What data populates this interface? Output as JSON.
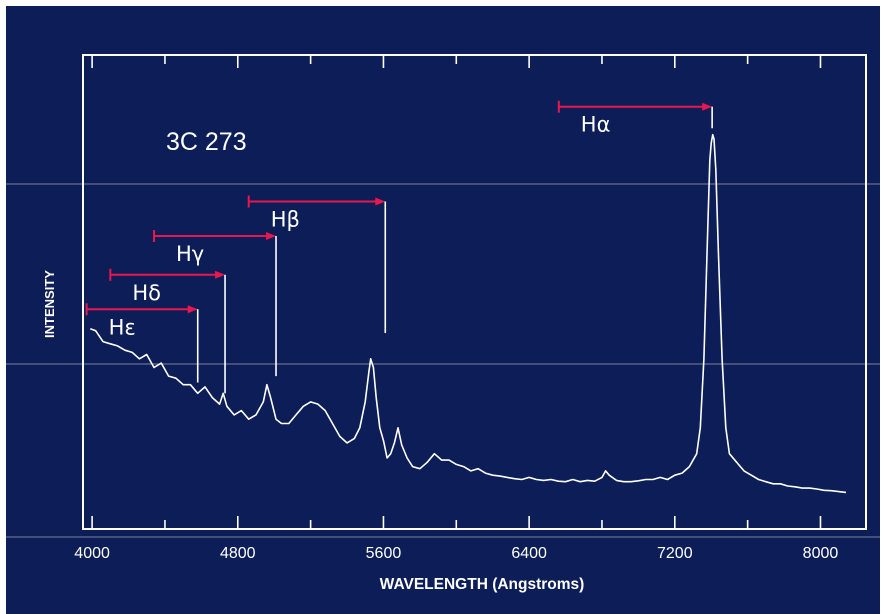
{
  "chart_data": {
    "type": "line",
    "title": "3C 273",
    "xlabel": "WAVELENGTH (Angstroms)",
    "ylabel": "INTENSITY",
    "xlim": [
      3950,
      8250
    ],
    "ylim": [
      0,
      100
    ],
    "xticks": [
      4000,
      4800,
      5600,
      6400,
      7200,
      8000
    ],
    "x_minor_ticks": [
      4400,
      5200,
      6000,
      6800,
      7600
    ],
    "grid": false,
    "colors": {
      "background": "#0d1d57",
      "foreground": "#ffffff",
      "arrow": "#e8174f"
    },
    "series": [
      {
        "values": [
          [
            3990,
            43
          ],
          [
            4020,
            42.5
          ],
          [
            4060,
            40
          ],
          [
            4100,
            39.5
          ],
          [
            4140,
            39
          ],
          [
            4180,
            38
          ],
          [
            4220,
            37.5
          ],
          [
            4260,
            36
          ],
          [
            4300,
            37
          ],
          [
            4340,
            34
          ],
          [
            4380,
            35
          ],
          [
            4420,
            32
          ],
          [
            4460,
            31.5
          ],
          [
            4500,
            30
          ],
          [
            4540,
            30
          ],
          [
            4580,
            28
          ],
          [
            4620,
            29.5
          ],
          [
            4660,
            27
          ],
          [
            4700,
            25.5
          ],
          [
            4720,
            28
          ],
          [
            4740,
            25
          ],
          [
            4780,
            23
          ],
          [
            4820,
            24
          ],
          [
            4860,
            22
          ],
          [
            4900,
            23
          ],
          [
            4940,
            26
          ],
          [
            4960,
            30
          ],
          [
            4980,
            27
          ],
          [
            5010,
            22
          ],
          [
            5040,
            21
          ],
          [
            5080,
            21
          ],
          [
            5120,
            23
          ],
          [
            5160,
            25
          ],
          [
            5200,
            26
          ],
          [
            5240,
            25.5
          ],
          [
            5280,
            24
          ],
          [
            5320,
            21
          ],
          [
            5360,
            18
          ],
          [
            5400,
            16.5
          ],
          [
            5440,
            17.5
          ],
          [
            5470,
            20
          ],
          [
            5500,
            26
          ],
          [
            5520,
            33
          ],
          [
            5530,
            36
          ],
          [
            5545,
            34
          ],
          [
            5560,
            27
          ],
          [
            5580,
            20
          ],
          [
            5600,
            17
          ],
          [
            5620,
            13
          ],
          [
            5640,
            14
          ],
          [
            5660,
            16.5
          ],
          [
            5680,
            20
          ],
          [
            5700,
            16
          ],
          [
            5730,
            13
          ],
          [
            5760,
            11
          ],
          [
            5800,
            10.5
          ],
          [
            5840,
            12
          ],
          [
            5880,
            14
          ],
          [
            5920,
            12.5
          ],
          [
            5960,
            12.5
          ],
          [
            6000,
            11.5
          ],
          [
            6040,
            11
          ],
          [
            6080,
            10
          ],
          [
            6120,
            10.5
          ],
          [
            6160,
            9.5
          ],
          [
            6200,
            9
          ],
          [
            6240,
            8.8
          ],
          [
            6280,
            8.5
          ],
          [
            6320,
            8.2
          ],
          [
            6360,
            8
          ],
          [
            6400,
            8.5
          ],
          [
            6440,
            8
          ],
          [
            6480,
            7.8
          ],
          [
            6520,
            8
          ],
          [
            6560,
            7.6
          ],
          [
            6600,
            7.5
          ],
          [
            6640,
            8
          ],
          [
            6680,
            7.5
          ],
          [
            6720,
            7.8
          ],
          [
            6760,
            7.6
          ],
          [
            6800,
            8.5
          ],
          [
            6820,
            10
          ],
          [
            6840,
            9
          ],
          [
            6880,
            7.8
          ],
          [
            6920,
            7.5
          ],
          [
            6960,
            7.5
          ],
          [
            7000,
            7.7
          ],
          [
            7040,
            8
          ],
          [
            7080,
            8
          ],
          [
            7120,
            8.5
          ],
          [
            7160,
            8
          ],
          [
            7200,
            9
          ],
          [
            7240,
            9.5
          ],
          [
            7280,
            11
          ],
          [
            7320,
            14
          ],
          [
            7340,
            20
          ],
          [
            7360,
            36
          ],
          [
            7380,
            65
          ],
          [
            7392,
            82
          ],
          [
            7400,
            86
          ],
          [
            7408,
            88
          ],
          [
            7415,
            87
          ],
          [
            7425,
            80
          ],
          [
            7440,
            60
          ],
          [
            7460,
            36
          ],
          [
            7480,
            20
          ],
          [
            7500,
            14
          ],
          [
            7540,
            12
          ],
          [
            7580,
            10
          ],
          [
            7620,
            9
          ],
          [
            7660,
            8
          ],
          [
            7700,
            7.5
          ],
          [
            7740,
            7
          ],
          [
            7780,
            7
          ],
          [
            7820,
            6.5
          ],
          [
            7860,
            6.3
          ],
          [
            7900,
            6
          ],
          [
            7940,
            6
          ],
          [
            7980,
            5.8
          ],
          [
            8020,
            5.5
          ],
          [
            8060,
            5.4
          ],
          [
            8100,
            5.2
          ],
          [
            8140,
            5
          ]
        ]
      }
    ],
    "annotations": [
      {
        "label": "Hε",
        "rest_x": 3970,
        "observed_x": 4580,
        "arrow_y": 47.5,
        "drop_to_y": 30.5
      },
      {
        "label": "Hδ",
        "rest_x": 4100,
        "observed_x": 4730,
        "arrow_y": 55.5,
        "drop_to_y": 28
      },
      {
        "label": "Hγ",
        "rest_x": 4340,
        "observed_x": 5010,
        "arrow_y": 64.5,
        "drop_to_y": 32
      },
      {
        "label": "Hβ",
        "rest_x": 4860,
        "observed_x": 5610,
        "arrow_y": 72.5,
        "drop_to_y": 42
      },
      {
        "label": "Hα",
        "rest_x": 6563,
        "observed_x": 7405,
        "arrow_y": 94.5,
        "drop_to_y": 89.5
      }
    ]
  }
}
